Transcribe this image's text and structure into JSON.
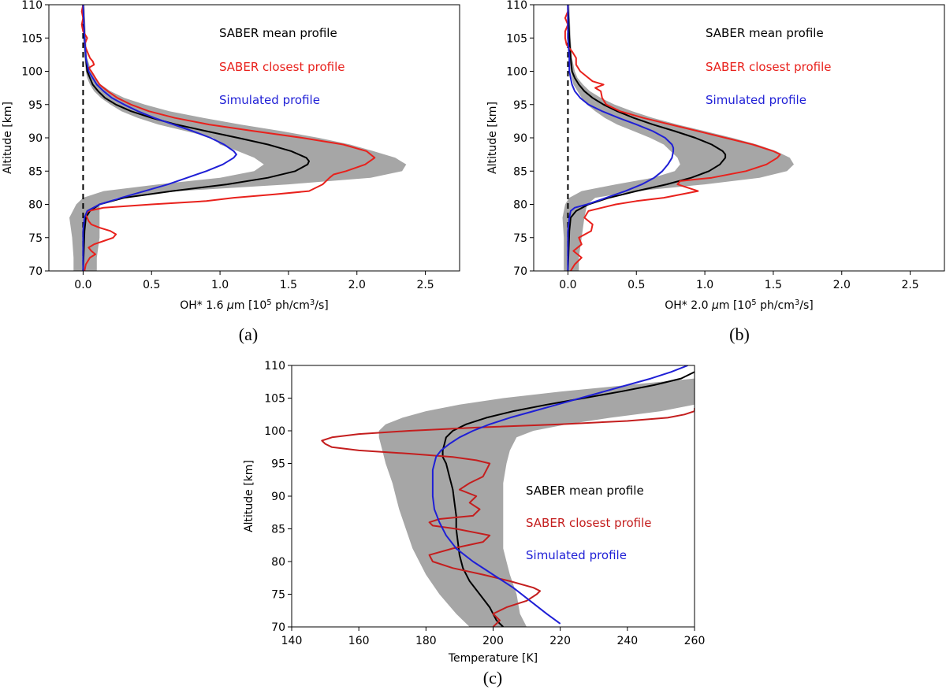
{
  "colors": {
    "band": "#a6a6a6",
    "mean": "#000000",
    "closest": "#e8211c",
    "closest_c": "#c41e1e",
    "simulated": "#1f1fd6"
  },
  "chart_data": [
    {
      "id": "a",
      "type": "line",
      "caption": "(a)",
      "xlabel_prefix": "OH* 1.6 ",
      "xlabel_mu": "μ",
      "xlabel_mid": "m [10",
      "xlabel_exp": "5",
      "xlabel_mid2": " ph/cm",
      "xlabel_exp2": "3",
      "xlabel_suffix": "/s]",
      "ylabel": "Altitude [km]",
      "xlim": [
        -0.25,
        2.75
      ],
      "ylim": [
        70,
        110
      ],
      "xticks": [
        0.0,
        0.5,
        1.0,
        1.5,
        2.0,
        2.5
      ],
      "xtick_labels": [
        "0.0",
        "0.5",
        "1.0",
        "1.5",
        "2.0",
        "2.5"
      ],
      "yticks": [
        70,
        75,
        80,
        85,
        90,
        95,
        100,
        105,
        110
      ],
      "ytick_labels": [
        "70",
        "75",
        "80",
        "85",
        "90",
        "95",
        "100",
        "105",
        "110"
      ],
      "zero_line": true,
      "legend": [
        "SABER mean profile",
        "SABER closest profile",
        "Simulated profile"
      ],
      "band": {
        "y": [
          70,
          72,
          75,
          78,
          80,
          81,
          82,
          83,
          84,
          85,
          86,
          87,
          88,
          89,
          90,
          91,
          92,
          93,
          94,
          95,
          96,
          97,
          98,
          99,
          100,
          102,
          105,
          110
        ],
        "lower": [
          -0.07,
          -0.07,
          -0.08,
          -0.1,
          -0.05,
          0.0,
          0.15,
          0.55,
          1.0,
          1.25,
          1.32,
          1.25,
          1.13,
          1.0,
          0.95,
          0.75,
          0.55,
          0.4,
          0.28,
          0.2,
          0.13,
          0.08,
          0.05,
          0.03,
          0.02,
          0.01,
          0.0,
          0.0
        ],
        "upper": [
          0.1,
          0.1,
          0.12,
          0.12,
          0.12,
          0.25,
          0.7,
          1.5,
          2.1,
          2.33,
          2.36,
          2.28,
          2.12,
          1.95,
          1.72,
          1.45,
          1.15,
          0.88,
          0.63,
          0.45,
          0.3,
          0.2,
          0.13,
          0.09,
          0.06,
          0.03,
          0.02,
          0.01
        ]
      },
      "series": [
        {
          "name": "SABER mean profile",
          "color": "mean",
          "y": [
            70,
            76,
            78,
            79,
            80,
            81,
            82,
            83,
            84,
            85,
            86,
            86.5,
            87,
            88,
            89,
            90,
            91,
            92,
            93,
            94,
            95,
            96,
            97,
            98,
            99,
            100,
            102,
            105,
            110
          ],
          "x": [
            0.0,
            0.01,
            0.02,
            0.05,
            0.12,
            0.3,
            0.65,
            1.05,
            1.35,
            1.55,
            1.64,
            1.65,
            1.63,
            1.52,
            1.35,
            1.13,
            0.9,
            0.68,
            0.5,
            0.35,
            0.24,
            0.16,
            0.11,
            0.07,
            0.05,
            0.03,
            0.02,
            0.01,
            0.0
          ]
        },
        {
          "name": "SABER closest profile",
          "color": "closest",
          "y": [
            70,
            71,
            72,
            72.5,
            73,
            73.5,
            74,
            74.5,
            75,
            75.5,
            76,
            76.5,
            77,
            77.5,
            78,
            78.5,
            79,
            79.5,
            80,
            80.5,
            81,
            81.5,
            82,
            83,
            84,
            84.5,
            85,
            86,
            87,
            88,
            89,
            90,
            91,
            92,
            93,
            94,
            95,
            96,
            97,
            98,
            99,
            100,
            100.5,
            101,
            101.5,
            102,
            103,
            104,
            105,
            106,
            107,
            108,
            109,
            110
          ],
          "x": [
            0.01,
            0.02,
            0.05,
            0.09,
            0.06,
            0.04,
            0.08,
            0.15,
            0.22,
            0.24,
            0.2,
            0.12,
            0.06,
            0.04,
            0.03,
            0.02,
            0.04,
            0.15,
            0.5,
            0.9,
            1.1,
            1.4,
            1.65,
            1.75,
            1.8,
            1.83,
            1.92,
            2.06,
            2.13,
            2.07,
            1.9,
            1.6,
            1.25,
            0.92,
            0.67,
            0.48,
            0.35,
            0.25,
            0.18,
            0.12,
            0.09,
            0.06,
            0.04,
            0.08,
            0.07,
            0.05,
            0.03,
            0.01,
            0.03,
            0.0,
            -0.01,
            0.0,
            -0.01,
            0.0
          ]
        },
        {
          "name": "Simulated profile",
          "color": "simulated",
          "y": [
            70,
            76,
            78,
            79,
            80,
            81,
            82,
            83,
            84,
            85,
            86,
            87,
            87.5,
            88,
            89,
            90,
            91,
            92,
            93,
            94,
            95,
            96,
            97,
            98,
            99,
            100,
            102,
            105,
            110
          ],
          "x": [
            0.0,
            0.0,
            0.01,
            0.03,
            0.12,
            0.28,
            0.45,
            0.62,
            0.76,
            0.9,
            1.02,
            1.1,
            1.12,
            1.1,
            1.03,
            0.93,
            0.8,
            0.66,
            0.52,
            0.4,
            0.3,
            0.21,
            0.15,
            0.1,
            0.07,
            0.04,
            0.02,
            0.01,
            0.0
          ]
        }
      ]
    },
    {
      "id": "b",
      "type": "line",
      "caption": "(b)",
      "xlabel_prefix": "OH* 2.0 ",
      "xlabel_mu": "μ",
      "xlabel_mid": "m [10",
      "xlabel_exp": "5",
      "xlabel_mid2": " ph/cm",
      "xlabel_exp2": "3",
      "xlabel_suffix": "/s]",
      "ylabel": "Altitude [km]",
      "xlim": [
        -0.25,
        2.75
      ],
      "ylim": [
        70,
        110
      ],
      "xticks": [
        0.0,
        0.5,
        1.0,
        1.5,
        2.0,
        2.5
      ],
      "xtick_labels": [
        "0.0",
        "0.5",
        "1.0",
        "1.5",
        "2.0",
        "2.5"
      ],
      "yticks": [
        70,
        75,
        80,
        85,
        90,
        95,
        100,
        105,
        110
      ],
      "ytick_labels": [
        "70",
        "75",
        "80",
        "85",
        "90",
        "95",
        "100",
        "105",
        "110"
      ],
      "zero_line": true,
      "legend": [
        "SABER mean profile",
        "SABER closest profile",
        "Simulated profile"
      ],
      "band": {
        "y": [
          70,
          72,
          75,
          78,
          80,
          81,
          82,
          83,
          84,
          85,
          86,
          87,
          88,
          89,
          90,
          91,
          92,
          93,
          94,
          95,
          96,
          97,
          98,
          99,
          100,
          102,
          105,
          110
        ],
        "lower": [
          -0.03,
          -0.03,
          -0.03,
          -0.04,
          -0.02,
          0.01,
          0.1,
          0.35,
          0.62,
          0.78,
          0.82,
          0.8,
          0.75,
          0.7,
          0.6,
          0.48,
          0.36,
          0.27,
          0.2,
          0.14,
          0.1,
          0.07,
          0.04,
          0.03,
          0.02,
          0.01,
          0.0,
          0.0
        ],
        "upper": [
          0.08,
          0.08,
          0.1,
          0.12,
          0.14,
          0.2,
          0.5,
          1.0,
          1.4,
          1.6,
          1.65,
          1.62,
          1.52,
          1.38,
          1.2,
          1.0,
          0.8,
          0.62,
          0.47,
          0.34,
          0.24,
          0.16,
          0.11,
          0.07,
          0.05,
          0.03,
          0.02,
          0.01
        ]
      },
      "series": [
        {
          "name": "SABER mean profile",
          "color": "mean",
          "y": [
            70,
            76,
            78,
            79,
            80,
            81,
            82,
            83,
            84,
            85,
            86,
            87,
            87.5,
            88,
            89,
            90,
            91,
            92,
            93,
            94,
            95,
            96,
            97,
            98,
            99,
            100,
            102,
            105,
            110
          ],
          "x": [
            0.0,
            0.01,
            0.02,
            0.06,
            0.15,
            0.3,
            0.5,
            0.72,
            0.9,
            1.03,
            1.11,
            1.15,
            1.15,
            1.13,
            1.05,
            0.93,
            0.78,
            0.62,
            0.48,
            0.36,
            0.26,
            0.18,
            0.12,
            0.08,
            0.05,
            0.03,
            0.02,
            0.01,
            0.0
          ]
        },
        {
          "name": "SABER closest profile",
          "color": "closest",
          "y": [
            70,
            71,
            72,
            73,
            74,
            75,
            76,
            77,
            78,
            79,
            79.5,
            80,
            80.5,
            81,
            82,
            83,
            83.5,
            84,
            85,
            86,
            87,
            87.5,
            88,
            89,
            90,
            91,
            92,
            93,
            94,
            95,
            96,
            97,
            97.5,
            98,
            98.5,
            99,
            100,
            101,
            102,
            103,
            104,
            105,
            106,
            107,
            108,
            109,
            110
          ],
          "x": [
            0.02,
            0.05,
            0.1,
            0.04,
            0.1,
            0.08,
            0.17,
            0.18,
            0.12,
            0.15,
            0.25,
            0.35,
            0.5,
            0.7,
            0.95,
            0.8,
            0.82,
            1.05,
            1.3,
            1.45,
            1.53,
            1.55,
            1.5,
            1.35,
            1.15,
            0.95,
            0.75,
            0.55,
            0.38,
            0.28,
            0.25,
            0.24,
            0.2,
            0.26,
            0.18,
            0.15,
            0.09,
            0.06,
            0.06,
            0.03,
            -0.01,
            -0.02,
            -0.02,
            0.0,
            -0.02,
            0.0,
            0.0
          ]
        },
        {
          "name": "Simulated profile",
          "color": "simulated",
          "y": [
            70,
            76,
            78,
            79,
            79.5,
            80,
            81,
            82,
            83,
            84,
            85,
            86,
            87,
            88,
            88.5,
            89,
            90,
            91,
            92,
            93,
            94,
            95,
            96,
            97,
            98,
            99,
            100,
            102,
            105,
            110
          ],
          "x": [
            0.0,
            0.0,
            0.01,
            0.02,
            0.05,
            0.14,
            0.28,
            0.42,
            0.54,
            0.63,
            0.69,
            0.73,
            0.76,
            0.77,
            0.77,
            0.76,
            0.71,
            0.62,
            0.5,
            0.37,
            0.25,
            0.15,
            0.09,
            0.05,
            0.03,
            0.02,
            0.01,
            0.01,
            0.0,
            0.0
          ]
        }
      ]
    },
    {
      "id": "c",
      "type": "line",
      "caption": "(c)",
      "xlabel": "Temperature [K]",
      "ylabel": "Altitude [km]",
      "xlim": [
        140,
        260
      ],
      "ylim": [
        70,
        110
      ],
      "xticks": [
        140,
        160,
        180,
        200,
        220,
        240,
        260
      ],
      "xtick_labels": [
        "140",
        "160",
        "180",
        "200",
        "220",
        "240",
        "260"
      ],
      "yticks": [
        70,
        75,
        80,
        85,
        90,
        95,
        100,
        105,
        110
      ],
      "ytick_labels": [
        "70",
        "75",
        "80",
        "85",
        "90",
        "95",
        "100",
        "105",
        "110"
      ],
      "zero_line": false,
      "legend": [
        "SABER mean profile",
        "SABER closest profile",
        "Simulated profile"
      ],
      "band": {
        "y": [
          70,
          72,
          75,
          78,
          80,
          82,
          85,
          88,
          90,
          92,
          95,
          97,
          99,
          100,
          101,
          102,
          103,
          104,
          105,
          106,
          107,
          108,
          109,
          110
        ],
        "lower": [
          193,
          189,
          184,
          180,
          178,
          176,
          174,
          172,
          171,
          170,
          168,
          167,
          166,
          166,
          168,
          173,
          180,
          190,
          203,
          220,
          240,
          260,
          260,
          260
        ],
        "upper": [
          210,
          208,
          207,
          205,
          204,
          203,
          203,
          203,
          203,
          203,
          204,
          205,
          207,
          212,
          222,
          235,
          250,
          260,
          260,
          260,
          260,
          260,
          260,
          260
        ]
      },
      "series": [
        {
          "name": "SABER mean profile",
          "color": "mean",
          "y": [
            70,
            71,
            72,
            73,
            75,
            77,
            79,
            81,
            83,
            85,
            87,
            89,
            91,
            93,
            95,
            96,
            97,
            98,
            99,
            100,
            101,
            102,
            103,
            104,
            105,
            106,
            107,
            108,
            109
          ],
          "x": [
            203,
            201,
            200,
            199,
            196,
            193,
            191,
            190,
            189.5,
            189,
            189,
            188.5,
            188,
            187,
            186,
            185,
            185,
            185.5,
            186,
            188,
            192,
            198,
            206,
            216,
            227,
            238,
            248,
            256,
            260
          ]
        },
        {
          "name": "SABER closest profile",
          "color": "closest_c",
          "y": [
            70,
            71,
            72,
            73,
            74,
            75,
            75.5,
            76,
            77,
            78,
            79,
            80,
            81,
            82,
            83,
            84,
            85,
            85.5,
            86,
            86.5,
            87,
            88,
            89,
            90,
            91,
            92,
            93,
            94,
            95,
            95.5,
            96,
            96.5,
            97,
            97.5,
            98,
            98.5,
            99,
            99.5,
            100,
            100.5,
            101,
            101.5,
            102,
            102.5,
            103,
            103.5
          ],
          "x": [
            200,
            202,
            200,
            204,
            210,
            213,
            214,
            212,
            205,
            197,
            188,
            182,
            181,
            188,
            197,
            199,
            189,
            182,
            181,
            184,
            194,
            196,
            193,
            195,
            190,
            193,
            197,
            198,
            199,
            195,
            188,
            175,
            160,
            152,
            150,
            149,
            152,
            160,
            175,
            195,
            220,
            240,
            252,
            257,
            260,
            260
          ]
        },
        {
          "name": "Simulated profile",
          "color": "simulated",
          "y": [
            70.5,
            72,
            74,
            76,
            78,
            80,
            82,
            84,
            86,
            88,
            90,
            92,
            94,
            96,
            97,
            98,
            99,
            100,
            101,
            102,
            103,
            104,
            105,
            106,
            107,
            108,
            109,
            110
          ],
          "x": [
            220,
            216,
            211,
            206,
            200,
            194,
            189,
            186,
            184,
            182.5,
            182,
            182,
            182,
            183,
            184.5,
            187,
            190,
            194,
            199,
            205,
            212,
            219,
            226,
            233,
            240,
            247,
            253,
            258
          ]
        }
      ]
    }
  ]
}
